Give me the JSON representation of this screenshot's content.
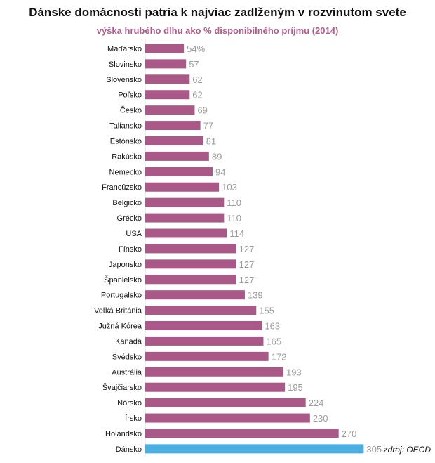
{
  "title": "Dánske domácnosti patria k najviac zadlženým v rozvinutom svete",
  "subtitle": "výška hrubého dlhu ako % disponibilného príjmu (2014)",
  "source": "zdroj: OECD",
  "colors": {
    "bar": "#a95888",
    "highlight": "#4daee0",
    "subtitle": "#b05c8c",
    "value": "#9b9b9b"
  },
  "chart_data": {
    "type": "bar",
    "orientation": "horizontal",
    "title": "Dánske domácnosti patria k najviac zadlženým v rozvinutom svete",
    "subtitle": "výška hrubého dlhu ako % disponibilného príjmu (2014)",
    "categories": [
      "Maďarsko",
      "Slovinsko",
      "Slovensko",
      "Poľsko",
      "Česko",
      "Taliansko",
      "Estónsko",
      "Rakúsko",
      "Nemecko",
      "Francúzsko",
      "Belgicko",
      "Grécko",
      "USA",
      "Fínsko",
      "Japonsko",
      "Španielsko",
      "Portugalsko",
      "Veľká Británia",
      "Južná Kórea",
      "Kanada",
      "Švédsko",
      "Austrália",
      "Švajčiarsko",
      "Nórsko",
      "Írsko",
      "Holandsko",
      "Dánsko"
    ],
    "values": [
      54,
      57,
      62,
      62,
      69,
      77,
      81,
      89,
      94,
      103,
      110,
      110,
      114,
      127,
      127,
      127,
      139,
      155,
      163,
      165,
      172,
      193,
      195,
      224,
      230,
      270,
      305
    ],
    "value_labels": [
      "54%",
      "57",
      "62",
      "62",
      "69",
      "77",
      "81",
      "89",
      "94",
      "103",
      "110",
      "110",
      "114",
      "127",
      "127",
      "127",
      "139",
      "155",
      "163",
      "165",
      "172",
      "193",
      "195",
      "224",
      "230",
      "270",
      "305"
    ],
    "highlight": "Dánsko",
    "xlim": [
      0,
      305
    ],
    "grid": false,
    "legend": "none"
  }
}
